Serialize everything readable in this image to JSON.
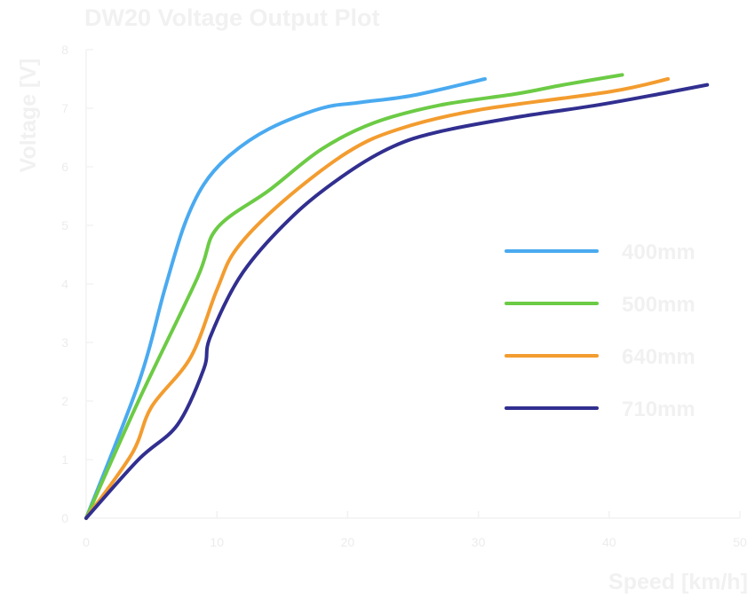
{
  "chart_data": {
    "type": "line",
    "title": "DW20 Voltage Output Plot",
    "xlabel": "Speed [km/h]",
    "ylabel": "Voltage [V]",
    "xlim": [
      0,
      50
    ],
    "ylim": [
      0,
      8
    ],
    "x_ticks": [
      0,
      10,
      20,
      30,
      40,
      50
    ],
    "y_ticks": [
      0,
      1,
      2,
      3,
      4,
      5,
      6,
      7,
      8
    ],
    "legend_position": "center-right",
    "series": [
      {
        "name": "400mm",
        "color": "#4aaaf0",
        "x": [
          0,
          4,
          6,
          7.5,
          9,
          11,
          14,
          18,
          21,
          25,
          30.5
        ],
        "y": [
          0,
          2.3,
          3.9,
          5.0,
          5.7,
          6.2,
          6.65,
          7.0,
          7.1,
          7.22,
          7.5
        ]
      },
      {
        "name": "500mm",
        "color": "#6ccb45",
        "x": [
          0,
          4,
          8.5,
          10,
          14,
          18,
          22,
          27,
          33,
          36.5,
          41
        ],
        "y": [
          0,
          2.0,
          4.1,
          4.95,
          5.6,
          6.3,
          6.75,
          7.05,
          7.25,
          7.4,
          7.57
        ]
      },
      {
        "name": "640mm",
        "color": "#f39c2f",
        "x": [
          0,
          3.5,
          5,
          8,
          10,
          11.5,
          15,
          20,
          24,
          30,
          40,
          44.5
        ],
        "y": [
          0,
          1.1,
          1.9,
          2.75,
          3.9,
          4.6,
          5.4,
          6.25,
          6.65,
          6.97,
          7.28,
          7.5
        ]
      },
      {
        "name": "710mm",
        "color": "#312f8f",
        "x": [
          0,
          4,
          7,
          9,
          9.5,
          12,
          16,
          20,
          23.5,
          27,
          33,
          39,
          44,
          47.5
        ],
        "y": [
          0,
          1.0,
          1.6,
          2.55,
          3.1,
          4.2,
          5.2,
          5.9,
          6.35,
          6.6,
          6.85,
          7.05,
          7.25,
          7.4
        ]
      }
    ]
  }
}
